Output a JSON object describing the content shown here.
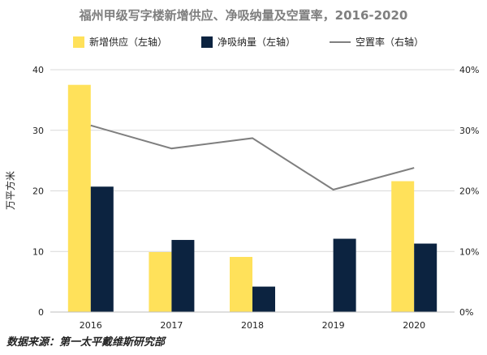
{
  "chart_data": {
    "type": "bar",
    "title": "福州甲级写字楼新增供应、净吸纳量及空置率，2016-2020",
    "categories": [
      "2016",
      "2017",
      "2018",
      "2019",
      "2020"
    ],
    "series": [
      {
        "name": "新增供应（左轴）",
        "type": "bar",
        "axis": "left",
        "color": "#FFE15A",
        "values": [
          37.5,
          9.9,
          9.1,
          0,
          21.6
        ]
      },
      {
        "name": "净吸纳量（左轴）",
        "type": "bar",
        "axis": "left",
        "color": "#0C2340",
        "values": [
          20.7,
          11.9,
          4.2,
          12.1,
          11.3
        ]
      },
      {
        "name": "空置率（右轴）",
        "type": "line",
        "axis": "right",
        "color": "#7f7f7f",
        "values": [
          30.8,
          27.0,
          28.7,
          20.2,
          23.8
        ]
      }
    ],
    "ylabel": "万平方米",
    "ylim": [
      0,
      40
    ],
    "y_ticks": [
      "0",
      "10",
      "20",
      "30",
      "40"
    ],
    "y2lim": [
      0,
      40
    ],
    "y2_ticks": [
      "0%",
      "10%",
      "20%",
      "30%",
      "40%"
    ],
    "grid": true,
    "legend_position": "top"
  },
  "source": "数据来源：第一太平戴维斯研究部"
}
